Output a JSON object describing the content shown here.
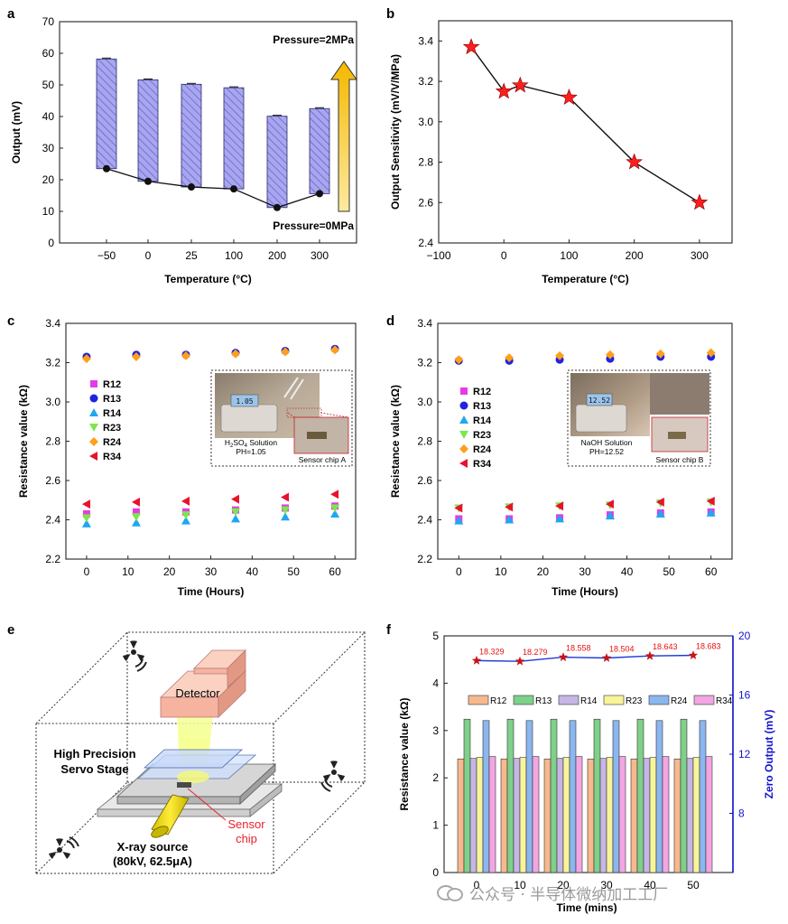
{
  "panels": {
    "a": {
      "letter": "a",
      "chart_data": {
        "type": "bar",
        "categories": [
          "−50",
          "0",
          "25",
          "100",
          "200",
          "300"
        ],
        "series": [
          {
            "name": "Pressure=2MPa",
            "values": [
              58.2,
              51.6,
              50.2,
              49.1,
              40.1,
              42.5
            ]
          },
          {
            "name": "Pressure=0MPa",
            "values": [
              23.5,
              19.5,
              17.7,
              17.1,
              11.2,
              15.6
            ]
          }
        ],
        "ylim": [
          0,
          70
        ],
        "yticks": [
          0,
          10,
          20,
          30,
          40,
          50,
          60,
          70
        ],
        "xlabel": "Temperature (°C)",
        "ylabel": "Output (mV)",
        "annotations": [
          "Pressure=2MPa",
          "Pressure=0MPa"
        ]
      }
    },
    "b": {
      "letter": "b",
      "chart_data": {
        "type": "line",
        "x": [
          -50,
          0,
          25,
          100,
          200,
          300
        ],
        "y": [
          3.37,
          3.15,
          3.18,
          3.12,
          2.8,
          2.6
        ],
        "xlim": [
          -100,
          350
        ],
        "ylim": [
          2.4,
          3.5
        ],
        "xticks": [
          -100,
          0,
          100,
          200,
          300
        ],
        "xtick_labels": [
          "−100",
          "0",
          "100",
          "200",
          "300"
        ],
        "yticks": [
          2.4,
          2.6,
          2.8,
          3.0,
          3.2,
          3.4
        ],
        "ytick_labels": [
          "2.4",
          "2.6",
          "2.8",
          "3.0",
          "3.2",
          "3.4"
        ],
        "xlabel": "Temperature (°C)",
        "ylabel": "Output Sensitivity (mV/V/MPa)"
      }
    },
    "c": {
      "letter": "c",
      "chart_data": {
        "type": "scatter",
        "x": [
          0,
          12,
          24,
          36,
          48,
          60
        ],
        "series": [
          {
            "name": "R12",
            "values": [
              2.43,
              2.44,
              2.44,
              2.45,
              2.46,
              2.47
            ]
          },
          {
            "name": "R13",
            "values": [
              3.23,
              3.24,
              3.24,
              3.25,
              3.26,
              3.27
            ]
          },
          {
            "name": "R14",
            "values": [
              2.38,
              2.385,
              2.395,
              2.405,
              2.415,
              2.43
            ]
          },
          {
            "name": "R23",
            "values": [
              2.41,
              2.415,
              2.425,
              2.44,
              2.45,
              2.46
            ]
          },
          {
            "name": "R24",
            "values": [
              3.22,
              3.23,
              3.235,
              3.245,
              3.255,
              3.265
            ]
          },
          {
            "name": "R34",
            "values": [
              2.48,
              2.49,
              2.495,
              2.505,
              2.515,
              2.53
            ]
          }
        ],
        "xlim": [
          -5,
          65
        ],
        "ylim": [
          2.2,
          3.4
        ],
        "xticks": [
          0,
          10,
          20,
          30,
          40,
          50,
          60
        ],
        "yticks": [
          2.2,
          2.4,
          2.6,
          2.8,
          3.0,
          3.2,
          3.4
        ],
        "ytick_labels": [
          "2.2",
          "2.4",
          "2.6",
          "2.8",
          "3.0",
          "3.2",
          "3.4"
        ],
        "xlabel": "Time (Hours)",
        "ylabel": "Resistance value (kΩ)",
        "inset": {
          "display": "1.05",
          "solution_main": "H",
          "solution_sub1": "2",
          "solution_mid": "SO",
          "solution_sub2": "4",
          "solution_tail": " Solution",
          "ph": "PH=1.05",
          "chip": "Sensor chip A"
        }
      }
    },
    "d": {
      "letter": "d",
      "chart_data": {
        "type": "scatter",
        "x": [
          0,
          12,
          24,
          36,
          48,
          60
        ],
        "series": [
          {
            "name": "R12",
            "values": [
              2.405,
              2.405,
              2.41,
              2.425,
              2.435,
              2.44
            ]
          },
          {
            "name": "R13",
            "values": [
              3.21,
              3.21,
              3.215,
              3.22,
              3.23,
              3.23
            ]
          },
          {
            "name": "R14",
            "values": [
              2.395,
              2.4,
              2.405,
              2.42,
              2.43,
              2.435
            ]
          },
          {
            "name": "R23",
            "values": [
              2.46,
              2.465,
              2.47,
              2.475,
              2.485,
              2.49
            ]
          },
          {
            "name": "R24",
            "values": [
              3.215,
              3.225,
              3.235,
              3.24,
              3.245,
              3.25
            ]
          },
          {
            "name": "R34",
            "values": [
              2.46,
              2.465,
              2.47,
              2.48,
              2.49,
              2.495
            ]
          }
        ],
        "xlim": [
          -5,
          65
        ],
        "ylim": [
          2.2,
          3.4
        ],
        "xticks": [
          0,
          10,
          20,
          30,
          40,
          50,
          60
        ],
        "yticks": [
          2.2,
          2.4,
          2.6,
          2.8,
          3.0,
          3.2,
          3.4
        ],
        "ytick_labels": [
          "2.2",
          "2.4",
          "2.6",
          "2.8",
          "3.0",
          "3.2",
          "3.4"
        ],
        "xlabel": "Time (Hours)",
        "ylabel": "Resistance value (kΩ)",
        "inset": {
          "display": "12.52",
          "solution": "NaOH Solution",
          "ph": "PH=12.52",
          "chip": "Sensor chip B"
        }
      }
    },
    "e": {
      "letter": "e",
      "labels": {
        "detector": "Detector",
        "stage_line1": "High Precision",
        "stage_line2": "Servo Stage",
        "xray_line1": "X-ray source",
        "xray_line2": "(80kV, 62.5μA)",
        "sensor_line1": "Sensor",
        "sensor_line2": "chip"
      }
    },
    "f": {
      "letter": "f",
      "chart_data": {
        "type": "bar",
        "categories": [
          "0",
          "10",
          "20",
          "30",
          "40",
          "50"
        ],
        "series": [
          {
            "name": "R12",
            "values": [
              2.4,
              2.4,
              2.4,
              2.4,
              2.4,
              2.4
            ]
          },
          {
            "name": "R13",
            "values": [
              3.24,
              3.24,
              3.24,
              3.24,
              3.24,
              3.24
            ]
          },
          {
            "name": "R14",
            "values": [
              2.41,
              2.41,
              2.41,
              2.41,
              2.41,
              2.41
            ]
          },
          {
            "name": "R23",
            "values": [
              2.43,
              2.43,
              2.43,
              2.43,
              2.43,
              2.43
            ]
          },
          {
            "name": "R24",
            "values": [
              3.21,
              3.21,
              3.21,
              3.21,
              3.21,
              3.21
            ]
          },
          {
            "name": "R34",
            "values": [
              2.45,
              2.45,
              2.45,
              2.45,
              2.45,
              2.45
            ]
          }
        ],
        "ylim": [
          0,
          5
        ],
        "yticks": [
          0,
          1,
          2,
          3,
          4,
          5
        ],
        "y2lim": [
          4,
          20
        ],
        "y2ticks": [
          8,
          12,
          16,
          20
        ],
        "zero_output": [
          18.329,
          18.279,
          18.558,
          18.504,
          18.643,
          18.683
        ],
        "zero_output_labels": [
          "18.329",
          "18.279",
          "18.558",
          "18.504",
          "18.643",
          "18.683"
        ],
        "xlabel": "Time (mins)",
        "ylabel": "Resistance value (kΩ)",
        "y2label": "Zero Output (mV)"
      }
    }
  },
  "colors": {
    "bar_a": "#a9a6f0",
    "bar_a_edge": "#2a2a6a",
    "star": "#ff1e1e",
    "R12": "#e53be6",
    "R13": "#2222dd",
    "R14": "#1ea8f0",
    "R23": "#7ee64c",
    "R24": "#ff9f1a",
    "R34": "#e8122c",
    "f_R12": "#f6b98e",
    "f_R13": "#7fd08a",
    "f_R14": "#c6b6e6",
    "f_R23": "#f8f49a",
    "f_R24": "#8bb6ee",
    "f_R34": "#f3a6e2",
    "zero_line": "#1f3ad8",
    "zero_label": "#e81010",
    "axis2": "#1414cc"
  },
  "watermark": "公众号 · 半导体微纳加工工厂"
}
